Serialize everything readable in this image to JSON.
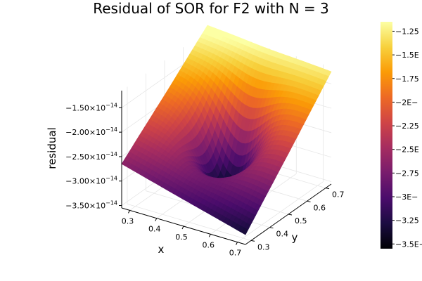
{
  "colors": {
    "background": "#ffffff",
    "grid": "#e6e6e6",
    "axis": "#000000",
    "colormap": [
      "#000004",
      "#1b0c41",
      "#4a0c6b",
      "#781c6d",
      "#a52c60",
      "#cf4446",
      "#ed6925",
      "#fb9b06",
      "#f7d13d",
      "#fcffa4"
    ]
  },
  "chart_data": {
    "type": "surface",
    "title": "Residual of SOR for F2 with N = 3",
    "xlabel": "x",
    "ylabel": "y",
    "zlabel": "residual",
    "x_ticks": [
      "0.3",
      "0.4",
      "0.5",
      "0.6",
      "0.7"
    ],
    "y_ticks": [
      "0.3",
      "0.4",
      "0.5",
      "0.6",
      "0.7"
    ],
    "z_ticks": [
      {
        "mantissa": "−3.50×10",
        "exp": "−14"
      },
      {
        "mantissa": "−3.00×10",
        "exp": "−14"
      },
      {
        "mantissa": "−2.50×10",
        "exp": "−14"
      },
      {
        "mantissa": "−2.00×10",
        "exp": "−14"
      },
      {
        "mantissa": "−1.50×10",
        "exp": "−14"
      }
    ],
    "xlim": [
      0.27,
      0.73
    ],
    "ylim": [
      0.27,
      0.73
    ],
    "zlim": [
      -3.55e-14,
      -1.15e-14
    ],
    "colorbar_ticks": [
      "−3.5E−",
      "−3.25",
      "−3E−",
      "−2.75",
      "−2.5E",
      "−2.25",
      "−2E−",
      "−1.75",
      "−1.5E",
      "−1.25"
    ],
    "colorbar_range": [
      -3.55e-14,
      -1.15e-14
    ],
    "surface_corners": {
      "x0_y0": -2.65e-14,
      "x1_y0": -3.35e-14,
      "x0_y1": -1.05e-14,
      "x1_y1": -1.25e-14
    },
    "minimum": {
      "x": 0.5,
      "y": 0.5,
      "z": -3.5e-14
    }
  }
}
